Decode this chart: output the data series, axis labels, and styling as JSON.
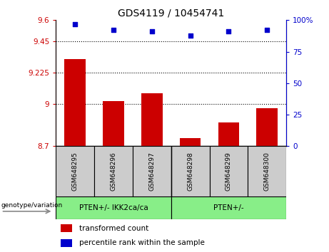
{
  "title": "GDS4119 / 10454741",
  "samples": [
    "GSM648295",
    "GSM648296",
    "GSM648297",
    "GSM648298",
    "GSM648299",
    "GSM648300"
  ],
  "bar_values": [
    9.32,
    9.02,
    9.08,
    8.76,
    8.87,
    8.97
  ],
  "percentile_values": [
    97,
    92,
    91,
    88,
    91,
    92
  ],
  "ylim_left": [
    8.7,
    9.6
  ],
  "ylim_right": [
    0,
    100
  ],
  "yticks_left": [
    8.7,
    9.0,
    9.225,
    9.45,
    9.6
  ],
  "ytick_labels_left": [
    "8.7",
    "9",
    "9.225",
    "9.45",
    "9.6"
  ],
  "yticks_right": [
    0,
    25,
    50,
    75,
    100
  ],
  "ytick_labels_right": [
    "0",
    "25",
    "50",
    "75",
    "100%"
  ],
  "hlines": [
    9.0,
    9.225,
    9.45
  ],
  "bar_color": "#cc0000",
  "percentile_color": "#0000cc",
  "group1_label": "PTEN+/- IKK2ca/ca",
  "group2_label": "PTEN+/-",
  "group_bg_color": "#88ee88",
  "sample_bg_color": "#cccccc",
  "legend_bar_label": "transformed count",
  "legend_pct_label": "percentile rank within the sample",
  "xlabel": "genotype/variation",
  "tick_color_left": "#cc0000",
  "tick_color_right": "#0000cc"
}
